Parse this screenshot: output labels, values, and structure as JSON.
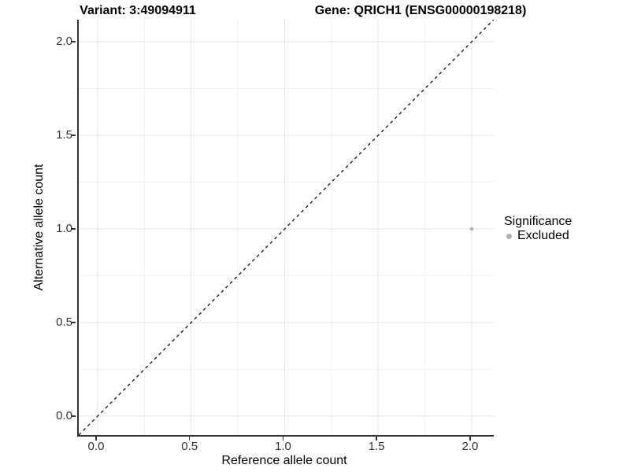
{
  "chart_data": {
    "type": "scatter",
    "title_left": "Variant: 3:49094911",
    "title_right": "Gene: QRICH1 (ENSG00000198218)",
    "xlabel": "Reference allele count",
    "ylabel": "Alternative allele count",
    "xlim": [
      -0.101,
      2.118
    ],
    "ylim": [
      -0.101,
      2.118
    ],
    "x_ticks": [
      0,
      0.5,
      1,
      1.5,
      2
    ],
    "y_ticks": [
      0,
      0.5,
      1,
      1.5,
      2
    ],
    "x_tick_labels": [
      "0.0",
      "0.5",
      "1.0",
      "1.5",
      "2.0"
    ],
    "y_tick_labels": [
      "0.0",
      "0.5",
      "1.0",
      "1.5",
      "2.0"
    ],
    "minor_ticks_x": [
      0.25,
      0.75,
      1.25,
      1.75
    ],
    "minor_ticks_y": [
      0.25,
      0.75,
      1.25,
      1.75
    ],
    "grid": "major+minor",
    "series": [
      {
        "name": "Excluded",
        "points": [
          {
            "x": 2,
            "y": 1
          }
        ]
      }
    ],
    "reference_line": {
      "kind": "identity",
      "slope": 1,
      "intercept": 0,
      "style": "dashed",
      "color": "#111111"
    },
    "legend": {
      "position": "right",
      "title": "Significance",
      "entries": [
        {
          "label": "Excluded",
          "color": "#b0b0b0"
        }
      ]
    },
    "colors": {
      "background": "#ffffff",
      "grid_major": "#e5e5e5",
      "grid_minor": "#f2f2f2",
      "axis": "#333333",
      "tick_text": "#333333",
      "title_text": "#000000",
      "point": "#b0b0b0"
    }
  }
}
